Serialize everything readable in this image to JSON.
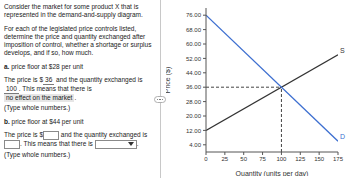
{
  "question": {
    "intro": "Consider the market for some product X that is represented in the demand-and-supply diagram.",
    "instructions": "For each of the legislated price controls listed, determine the price and quantity exchanged after imposition of control, whether a shortage or surplus develops, and if so, how much.",
    "parts": [
      {
        "label": "a.",
        "prompt": "price floor at $28 per unit",
        "sentence": [
          "The price is $",
          " and the quantity exchanged is ",
          ". This means that there is ",
          "."
        ],
        "answers": [
          "36",
          "100",
          "no effect on the market"
        ],
        "hint": "(Type whole numbers.)"
      },
      {
        "label": "b.",
        "prompt": "price floor at $44 per unit",
        "sentence": [
          "The price is $",
          " and the quantity exchanged is ",
          ". This means that there is ",
          "."
        ],
        "hint": "(Type whole numbers.)"
      }
    ]
  },
  "chart_data": {
    "type": "line",
    "x_label": "Quantity (units per day)",
    "y_label": "Price ($)",
    "xlim": [
      0,
      175
    ],
    "xticks": [
      0,
      25,
      50,
      75,
      100,
      125,
      150,
      175
    ],
    "ylim": [
      0,
      80
    ],
    "yticks": [
      {
        "value": 4,
        "label": "4.00"
      },
      {
        "value": 12,
        "label": "12.00"
      },
      {
        "value": 20,
        "label": "20.00"
      },
      {
        "value": 28,
        "label": "28.00"
      },
      {
        "value": 36,
        "label": "36.00"
      },
      {
        "value": 44,
        "label": "44.00"
      },
      {
        "value": 52,
        "label": "52.00"
      },
      {
        "value": 60,
        "label": "60.00"
      },
      {
        "value": 68,
        "label": "68.00"
      },
      {
        "value": 76,
        "label": "76.00"
      }
    ],
    "grid": false,
    "series": [
      {
        "name": "S",
        "color": "#333333",
        "x": [
          0,
          175
        ],
        "values": [
          12,
          54
        ]
      },
      {
        "name": "D",
        "color": "#3d6fd0",
        "x": [
          0,
          175
        ],
        "values": [
          76,
          6
        ]
      }
    ],
    "dashed_guides": [
      {
        "x": 100,
        "y": 36
      }
    ]
  }
}
